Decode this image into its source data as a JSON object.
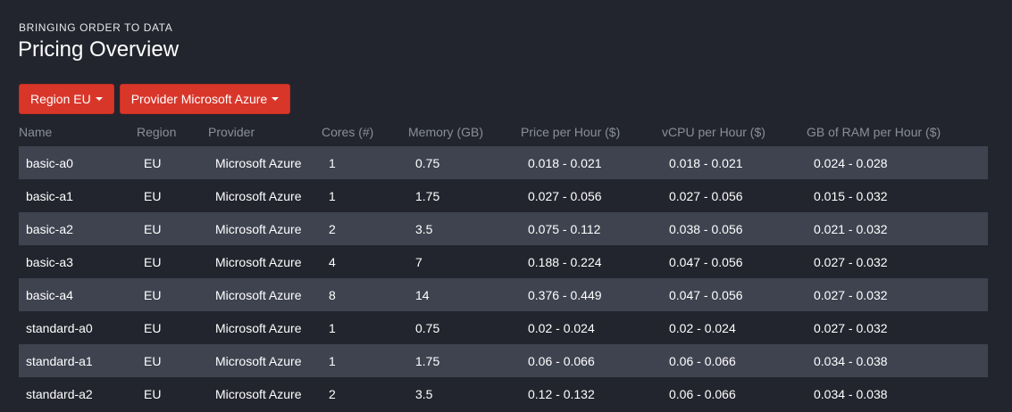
{
  "header": {
    "eyebrow": "BRINGING ORDER TO DATA",
    "title": "Pricing Overview"
  },
  "filters": {
    "region_label": "Region EU",
    "provider_label": "Provider Microsoft Azure",
    "accent_color": "#d9362a",
    "caret_icon": "caret-down-icon"
  },
  "table": {
    "columns": [
      "Name",
      "Region",
      "Provider",
      "Cores (#)",
      "Memory (GB)",
      "Price per Hour ($)",
      "vCPU per Hour ($)",
      "GB of RAM per Hour ($)"
    ],
    "rows": [
      [
        "basic-a0",
        "EU",
        "Microsoft Azure",
        "1",
        "0.75",
        "0.018 - 0.021",
        "0.018 - 0.021",
        "0.024 - 0.028"
      ],
      [
        "basic-a1",
        "EU",
        "Microsoft Azure",
        "1",
        "1.75",
        "0.027 - 0.056",
        "0.027 - 0.056",
        "0.015 - 0.032"
      ],
      [
        "basic-a2",
        "EU",
        "Microsoft Azure",
        "2",
        "3.5",
        "0.075 - 0.112",
        "0.038 - 0.056",
        "0.021 - 0.032"
      ],
      [
        "basic-a3",
        "EU",
        "Microsoft Azure",
        "4",
        "7",
        "0.188 - 0.224",
        "0.047 - 0.056",
        "0.027 - 0.032"
      ],
      [
        "basic-a4",
        "EU",
        "Microsoft Azure",
        "8",
        "14",
        "0.376 - 0.449",
        "0.047 - 0.056",
        "0.027 - 0.032"
      ],
      [
        "standard-a0",
        "EU",
        "Microsoft Azure",
        "1",
        "0.75",
        "0.02 - 0.024",
        "0.02 - 0.024",
        "0.027 - 0.032"
      ],
      [
        "standard-a1",
        "EU",
        "Microsoft Azure",
        "1",
        "1.75",
        "0.06 - 0.066",
        "0.06 - 0.066",
        "0.034 - 0.038"
      ],
      [
        "standard-a2",
        "EU",
        "Microsoft Azure",
        "2",
        "3.5",
        "0.12 - 0.132",
        "0.06 - 0.066",
        "0.034 - 0.038"
      ]
    ]
  }
}
